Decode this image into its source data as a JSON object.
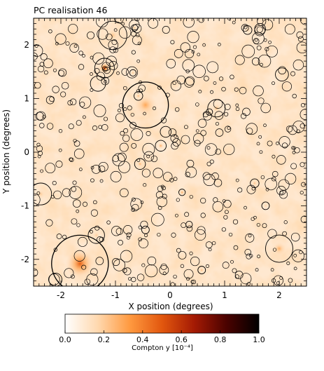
{
  "chart_data": {
    "type": "heatmap",
    "title": "PC realisation 46",
    "xlabel": "X position (degrees)",
    "ylabel": "Y position (degrees)",
    "xlim": [
      -2.5,
      2.5
    ],
    "ylim": [
      -2.5,
      2.5
    ],
    "xticks": [
      -2,
      -1,
      0,
      1,
      2
    ],
    "yticks": [
      -2,
      -1,
      0,
      1,
      2
    ],
    "xtick_labels": [
      "-2",
      "-1",
      "0",
      "1",
      "2"
    ],
    "ytick_labels": [
      "-2",
      "-1",
      "0",
      "1",
      "2"
    ],
    "grid": false,
    "colorbar": {
      "label": "Compton y [10⁻⁴]",
      "range": [
        0.0,
        1.0
      ],
      "ticks": [
        0.0,
        0.2,
        0.4,
        0.6,
        0.8,
        1.0
      ],
      "tick_labels": [
        "0.0",
        "0.2",
        "0.4",
        "0.6",
        "0.8",
        "1.0"
      ],
      "colors": [
        "#ffffff",
        "#ffd9b0",
        "#ff9a40",
        "#e2570e",
        "#a41a04",
        "#4a0200",
        "#000000"
      ]
    },
    "background_level": 0.1,
    "clusters": [
      {
        "x": -1.65,
        "y": -2.08,
        "r": 0.52,
        "peak": 0.48
      },
      {
        "x": -0.45,
        "y": 0.88,
        "r": 0.42,
        "peak": 0.3
      },
      {
        "x": -1.2,
        "y": 1.57,
        "r": 0.18,
        "peak": 0.58
      },
      {
        "x": -1.05,
        "y": 2.18,
        "r": 0.26,
        "peak": 0.22
      },
      {
        "x": 2.0,
        "y": -1.8,
        "r": 0.25,
        "peak": 0.28
      },
      {
        "x": -0.17,
        "y": 0.12,
        "r": 0.1,
        "peak": 0.3
      },
      {
        "x": 0.85,
        "y": 0.82,
        "r": 0.16,
        "peak": 0.25
      },
      {
        "x": -0.55,
        "y": -0.22,
        "r": 0.1,
        "peak": 0.28
      },
      {
        "x": -2.37,
        "y": -0.78,
        "r": 0.2,
        "peak": 0.2
      },
      {
        "x": -1.35,
        "y": -1.55,
        "r": 0.15,
        "peak": 0.2
      },
      {
        "x": 2.05,
        "y": 1.45,
        "r": 0.12,
        "peak": 0.18
      },
      {
        "x": 1.55,
        "y": -0.58,
        "r": 0.08,
        "peak": 0.25
      },
      {
        "x": 0.22,
        "y": -0.75,
        "r": 0.06,
        "peak": 0.3
      },
      {
        "x": 0.58,
        "y": -2.2,
        "r": 0.07,
        "peak": 0.25
      },
      {
        "x": -0.68,
        "y": 1.48,
        "r": 0.06,
        "peak": 0.22
      },
      {
        "x": -0.65,
        "y": 2.32,
        "r": 0.06,
        "peak": 0.25
      },
      {
        "x": 1.42,
        "y": 2.28,
        "r": 0.08,
        "peak": 0.22
      },
      {
        "x": -0.58,
        "y": 1.05,
        "r": 0.08,
        "peak": 0.26
      },
      {
        "x": -1.32,
        "y": 1.28,
        "r": 0.14,
        "peak": 0.15
      },
      {
        "x": 1.65,
        "y": 2.3,
        "r": 0.1,
        "peak": 0.15
      },
      {
        "x": 0.72,
        "y": 0.75,
        "r": 0.06,
        "peak": 0.2
      },
      {
        "x": -0.08,
        "y": 0.38,
        "r": 0.1,
        "peak": 0.14
      },
      {
        "x": -0.45,
        "y": -1.45,
        "r": 0.07,
        "peak": 0.18
      },
      {
        "x": 0.35,
        "y": -1.35,
        "r": 0.06,
        "peak": 0.18
      },
      {
        "x": 1.75,
        "y": -1.0,
        "r": 0.07,
        "peak": 0.18
      },
      {
        "x": -2.1,
        "y": -2.38,
        "r": 0.12,
        "peak": 0.15
      }
    ]
  }
}
